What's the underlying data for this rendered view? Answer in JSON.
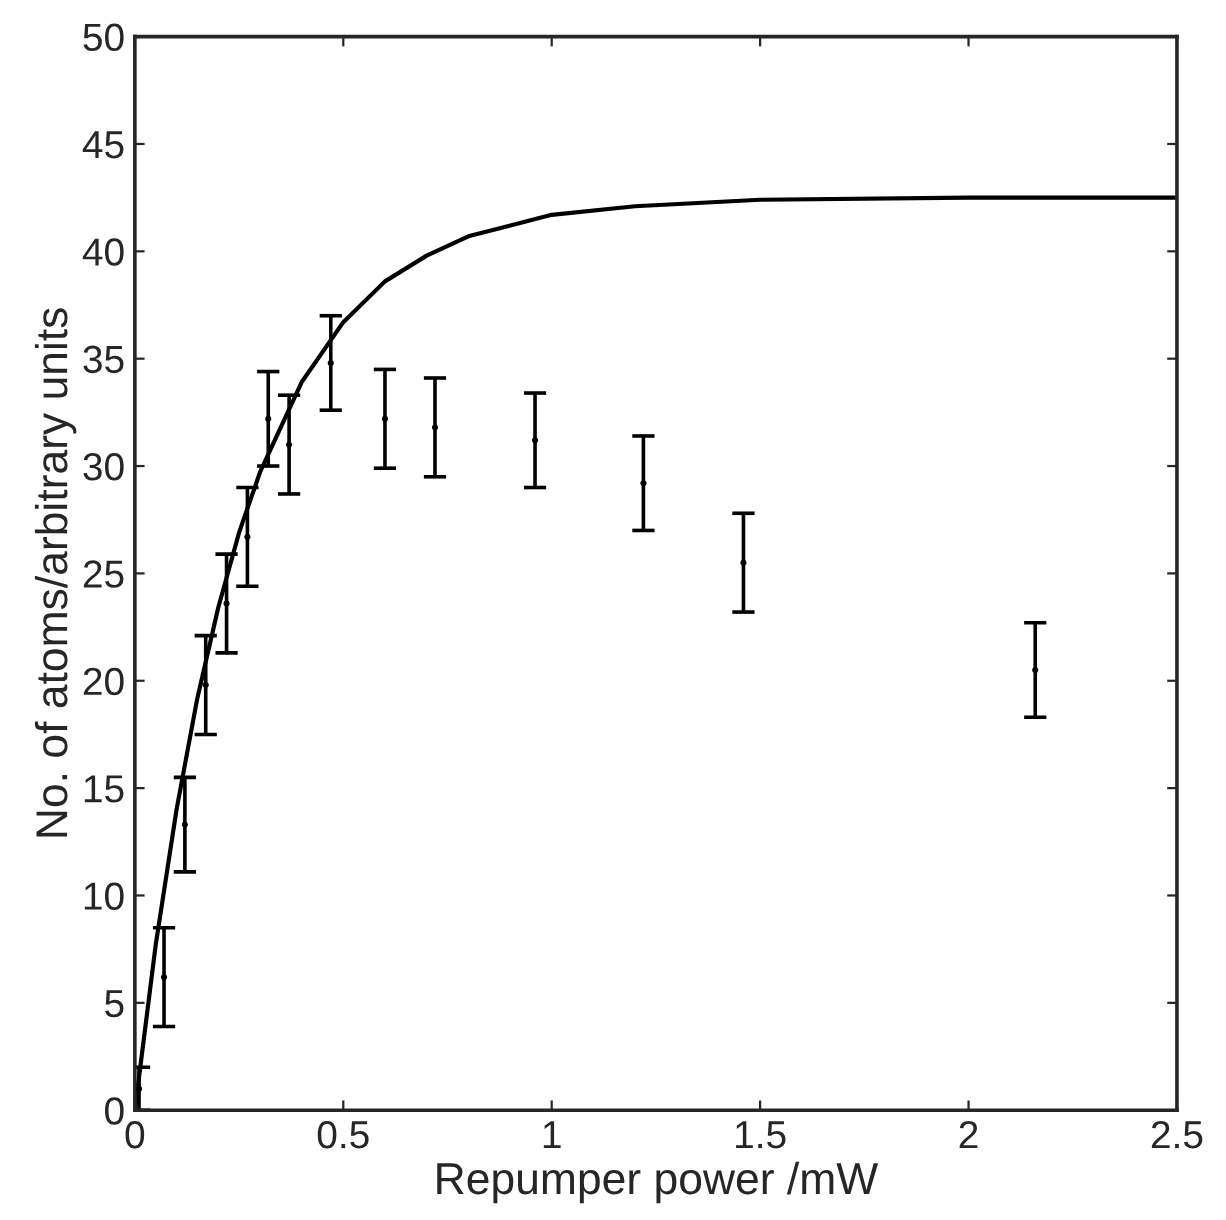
{
  "chart_data": {
    "type": "scatter",
    "xlabel": "Repumper power /mW",
    "ylabel": "No. of atoms/arbitrary units",
    "xlim": [
      0,
      2.5
    ],
    "ylim": [
      0,
      50
    ],
    "xticks": [
      0,
      0.5,
      1,
      1.5,
      2,
      2.5
    ],
    "yticks": [
      0,
      5,
      10,
      15,
      20,
      25,
      30,
      35,
      40,
      45,
      50
    ],
    "grid": false,
    "legend": false,
    "series": [
      {
        "color": "#000000",
        "marker": "none",
        "x": [
          0.01,
          0.07,
          0.12,
          0.17,
          0.22,
          0.27,
          0.32,
          0.37,
          0.47,
          0.6,
          0.72,
          0.96,
          1.22,
          1.46,
          2.16
        ],
        "values": [
          1,
          6.2,
          13.3,
          19.8,
          23.6,
          26.7,
          32.2,
          31,
          34.8,
          32.2,
          31.8,
          31.2,
          29.2,
          25.5,
          20.5
        ],
        "errors": [
          1,
          2.3,
          2.2,
          2.3,
          2.3,
          2.3,
          2.2,
          2.3,
          2.2,
          2.3,
          2.3,
          2.2,
          2.2,
          2.3,
          2.2
        ]
      },
      {
        "type": "line",
        "color": "#000000",
        "line_style": "solid",
        "x": [
          0,
          0.05,
          0.1,
          0.15,
          0.2,
          0.25,
          0.3,
          0.4,
          0.5,
          0.6,
          0.7,
          0.8,
          1.0,
          1.2,
          1.5,
          2.0,
          2.5
        ],
        "values": [
          0,
          7.7,
          14.0,
          19.2,
          23.4,
          26.9,
          29.7,
          33.9,
          36.7,
          38.6,
          39.8,
          40.7,
          41.7,
          42.1,
          42.4,
          42.5,
          42.5
        ]
      }
    ]
  }
}
